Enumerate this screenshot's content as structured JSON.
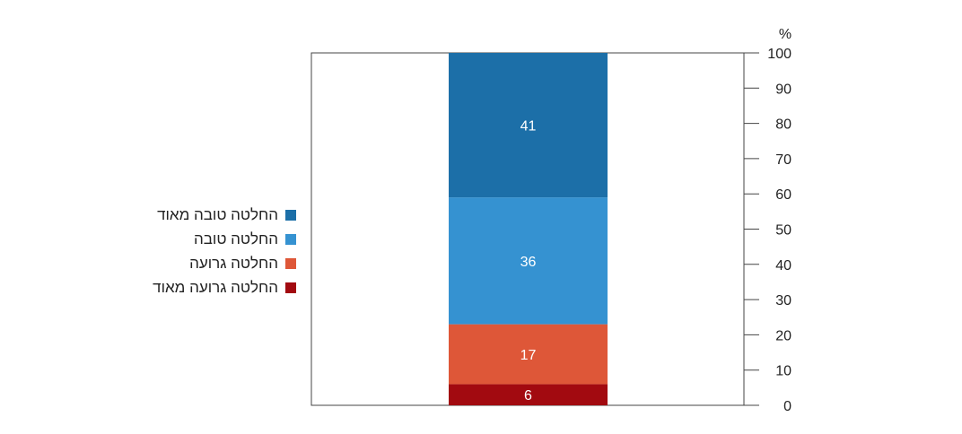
{
  "chart_data": {
    "type": "bar",
    "stacked": true,
    "orientation": "vertical",
    "title": "",
    "xlabel": "",
    "ylabel": "%",
    "ylim": [
      0,
      100
    ],
    "yticks": [
      0,
      10,
      20,
      30,
      40,
      50,
      60,
      70,
      80,
      90,
      100
    ],
    "y_axis_side": "right",
    "grid": false,
    "legend_position": "left",
    "categories": [
      ""
    ],
    "series": [
      {
        "name": "החלטה גרועה מאוד",
        "values": [
          6
        ],
        "color": "#a20a10"
      },
      {
        "name": "החלטה גרועה",
        "values": [
          17
        ],
        "color": "#de5738"
      },
      {
        "name": "החלטה טובה",
        "values": [
          36
        ],
        "color": "#3592d1"
      },
      {
        "name": "החלטה טובה מאוד",
        "values": [
          41
        ],
        "color": "#1c6fa8"
      }
    ],
    "legend_order": [
      3,
      2,
      1,
      0
    ]
  }
}
